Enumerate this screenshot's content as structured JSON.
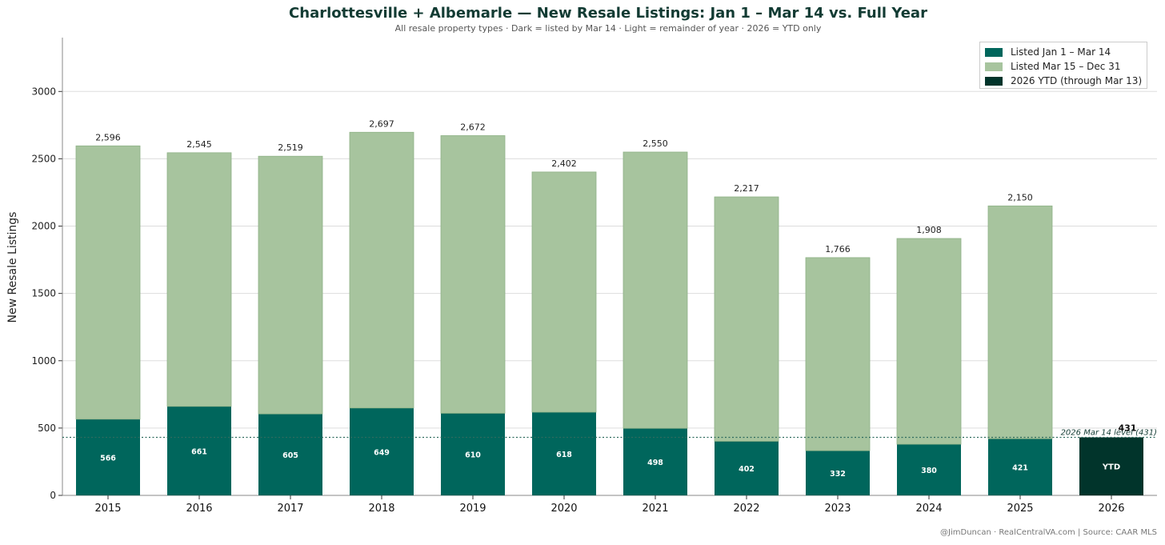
{
  "chart_data": {
    "type": "bar",
    "stacked": true,
    "title": "Charlottesville + Albemarle — New Resale Listings: Jan 1 – Mar 14 vs. Full Year",
    "subtitle": "All resale property types · Dark = listed by Mar 14 · Light = remainder of year · 2026 = YTD only",
    "ylabel": "New Resale Listings",
    "xlabel": "",
    "ylim": [
      0,
      3400
    ],
    "yticks": [
      0,
      500,
      1000,
      1500,
      2000,
      2500,
      3000
    ],
    "grid": "horizontal",
    "legend_position": "top-right",
    "categories": [
      "2015",
      "2016",
      "2017",
      "2018",
      "2019",
      "2020",
      "2021",
      "2022",
      "2023",
      "2024",
      "2025",
      "2026"
    ],
    "series": [
      {
        "name": "Listed Jan 1 – Mar 14",
        "color": "#00665c",
        "values": [
          566,
          661,
          605,
          649,
          610,
          618,
          498,
          402,
          332,
          380,
          421,
          null
        ]
      },
      {
        "name": "Listed Mar 15 – Dec 31",
        "color": "#a7c49e",
        "values": [
          2030,
          1884,
          1914,
          2048,
          2062,
          1784,
          2052,
          1815,
          1434,
          1528,
          1729,
          null
        ]
      },
      {
        "name": "2026 YTD (through Mar 13)",
        "color": "#01342b",
        "values": [
          null,
          null,
          null,
          null,
          null,
          null,
          null,
          null,
          null,
          null,
          null,
          431
        ]
      }
    ],
    "totals": [
      2596,
      2545,
      2519,
      2697,
      2672,
      2402,
      2550,
      2217,
      1766,
      1908,
      2150,
      null
    ],
    "total_labels": [
      "2,596",
      "2,545",
      "2,519",
      "2,697",
      "2,672",
      "2,402",
      "2,550",
      "2,217",
      "1,766",
      "1,908",
      "2,150",
      "431"
    ],
    "inner_labels": [
      "566",
      "661",
      "605",
      "649",
      "610",
      "618",
      "498",
      "402",
      "332",
      "380",
      "421",
      "YTD"
    ],
    "reference_line": {
      "value": 431,
      "label": "2026 Mar 14 level (431)",
      "color": "#2e6b5e"
    }
  },
  "footer": "@JimDuncan · RealCentralVA.com  |  Source: CAAR MLS"
}
